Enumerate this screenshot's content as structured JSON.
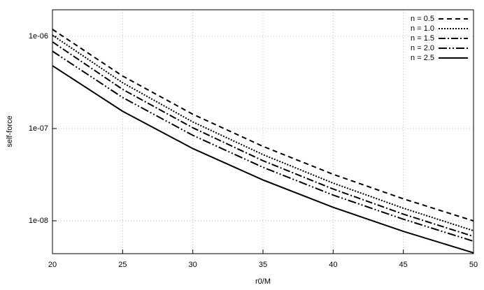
{
  "chart_data": {
    "type": "line",
    "xlabel": "r0/M",
    "ylabel": "self-force",
    "x": [
      20,
      25,
      30,
      35,
      40,
      45,
      50
    ],
    "xlim": [
      20,
      50
    ],
    "xticks": [
      20,
      25,
      30,
      35,
      40,
      45,
      50
    ],
    "ylim": [
      4.4e-09,
      1.94e-06
    ],
    "log_y": true,
    "grid": true,
    "legend": "top-right",
    "yticks": [
      {
        "value": 1e-08,
        "label": "1e-08"
      },
      {
        "value": 1e-07,
        "label": "1e-07"
      },
      {
        "value": 1e-06,
        "label": "1e-06"
      }
    ],
    "series": [
      {
        "name": "n = 0.5",
        "color": "#000000",
        "dash": "7,5",
        "values": [
          1.19e-06,
          3.71e-07,
          1.43e-07,
          6.41e-08,
          3.19e-08,
          1.73e-08,
          9.97e-09
        ]
      },
      {
        "name": "n = 1.0",
        "color": "#000000",
        "dash": "2,2",
        "values": [
          1.03e-06,
          3.14e-07,
          1.18e-07,
          5.22e-08,
          2.56e-08,
          1.37e-08,
          7.8e-09
        ]
      },
      {
        "name": "n = 1.5",
        "color": "#000000",
        "dash": "10,3,2,3",
        "values": [
          8.7e-07,
          2.66e-07,
          1.02e-07,
          4.48e-08,
          2.21e-08,
          1.18e-08,
          6.77e-09
        ]
      },
      {
        "name": "n = 2.0",
        "color": "#000000",
        "dash": "12,3,2,3,2,3",
        "values": [
          6.9e-07,
          2.17e-07,
          8.45e-08,
          3.8e-08,
          1.9e-08,
          1.04e-08,
          6e-09
        ]
      },
      {
        "name": "n = 2.5",
        "color": "#000000",
        "dash": "none",
        "values": [
          4.8e-07,
          1.54e-07,
          6.07e-08,
          2.77e-08,
          1.4e-08,
          7.68e-09,
          4.49e-09
        ]
      }
    ]
  }
}
